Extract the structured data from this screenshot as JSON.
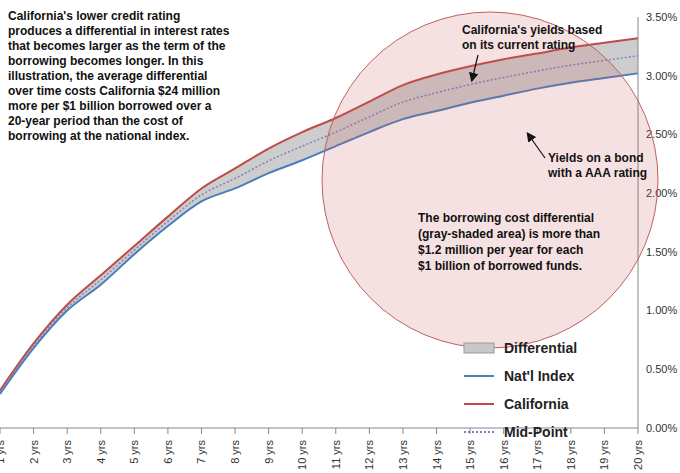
{
  "chart_data": {
    "type": "line",
    "categories": [
      "1 yrs",
      "2 yrs",
      "3 yrs",
      "4 yrs",
      "5 yrs",
      "6 yrs",
      "7 yrs",
      "8 yrs",
      "9 yrs",
      "10 yrs",
      "11 yrs",
      "12 yrs",
      "13 yrs",
      "14 yrs",
      "15 yrs",
      "16 yrs",
      "17 yrs",
      "18 yrs",
      "19 yrs",
      "20 yrs"
    ],
    "ylim": [
      0,
      3.5
    ],
    "yticks": [
      {
        "value": 0,
        "label": "0.00%"
      },
      {
        "value": 0.5,
        "label": "0.50%"
      },
      {
        "value": 1,
        "label": "1.00%"
      },
      {
        "value": 1.5,
        "label": "1.50%"
      },
      {
        "value": 2,
        "label": "2.00%"
      },
      {
        "value": 2.5,
        "label": "2.50%"
      },
      {
        "value": 3,
        "label": "3.00%"
      },
      {
        "value": 3.5,
        "label": "3.50%"
      }
    ],
    "grid": false,
    "legend": "lower right",
    "series": [
      {
        "name": "Differential",
        "type": "area",
        "color": "#c8c8c8",
        "values": [
          0.03,
          0.04,
          0.05,
          0.08,
          0.07,
          0.08,
          0.11,
          0.17,
          0.21,
          0.24,
          0.24,
          0.26,
          0.29,
          0.31,
          0.31,
          0.31,
          0.3,
          0.3,
          0.3,
          0.3
        ]
      },
      {
        "name": "Nat'l Index",
        "color": "#4a7ebb",
        "values": [
          0.29,
          0.68,
          1.0,
          1.22,
          1.48,
          1.72,
          1.93,
          2.04,
          2.17,
          2.28,
          2.4,
          2.52,
          2.63,
          2.7,
          2.77,
          2.83,
          2.89,
          2.94,
          2.98,
          3.02
        ]
      },
      {
        "name": "California",
        "color": "#be4b48",
        "values": [
          0.32,
          0.72,
          1.05,
          1.3,
          1.55,
          1.8,
          2.04,
          2.21,
          2.38,
          2.52,
          2.64,
          2.78,
          2.92,
          3.01,
          3.08,
          3.14,
          3.19,
          3.24,
          3.28,
          3.32
        ]
      },
      {
        "name": "Mid-Point",
        "color": "#7f7fc0",
        "line_style": "dotted",
        "values": [
          0.305,
          0.7,
          1.025,
          1.26,
          1.515,
          1.76,
          1.985,
          2.125,
          2.275,
          2.4,
          2.52,
          2.65,
          2.775,
          2.855,
          2.925,
          2.985,
          3.04,
          3.09,
          3.13,
          3.17
        ]
      }
    ],
    "annotations": [
      {
        "text": [
          "California's lower credit rating",
          "produces a differential in interest rates",
          "that becomes larger as the term of the",
          "borrowing becomes longer. In this",
          "illustration, the average differential",
          "over time costs California $24 million",
          "more per $1 billion borrowed over a",
          "20-year period than the cost of",
          "borrowing at the national index."
        ]
      },
      {
        "text": [
          "California's yields based",
          "on its current rating"
        ]
      },
      {
        "text": [
          "Yields on a bond",
          "with a AAA rating"
        ]
      },
      {
        "text": [
          "The borrowing cost differential",
          "(gray-shaded area)  is more than",
          "$1.2 million per year for each",
          "$1 billion of borrowed funds."
        ]
      }
    ]
  }
}
